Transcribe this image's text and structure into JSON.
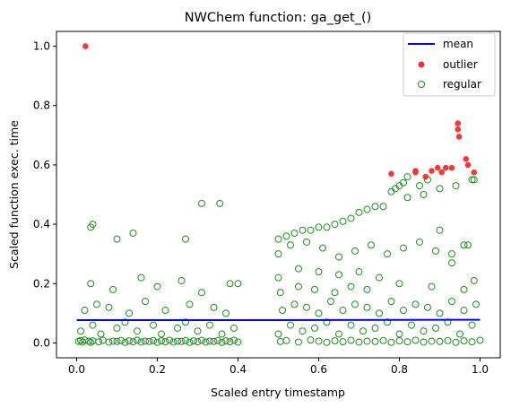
{
  "chart_data": {
    "type": "scatter",
    "title": "NWChem function: ga_get_()",
    "xlabel": "Scaled entry timestamp",
    "ylabel": "Scaled function exec. time",
    "xlim": [
      -0.05,
      1.05
    ],
    "ylim": [
      -0.05,
      1.05
    ],
    "xticks": [
      0.0,
      0.2,
      0.4,
      0.6,
      0.8,
      1.0
    ],
    "yticks": [
      0.0,
      0.2,
      0.4,
      0.6,
      0.8,
      1.0
    ],
    "xtick_labels": [
      "0.0",
      "0.2",
      "0.4",
      "0.6",
      "0.8",
      "1.0"
    ],
    "ytick_labels": [
      "0.0",
      "0.2",
      "0.4",
      "0.6",
      "0.8",
      "1.0"
    ],
    "grid": false,
    "legend_position": "top-right",
    "colors": {
      "mean": "#0000ff",
      "outlier": "#f03030",
      "regular": "#228b22"
    },
    "series": [
      {
        "name": "mean",
        "kind": "line",
        "x": [
          0.0,
          0.4,
          0.49,
          1.0
        ],
        "y": [
          0.077,
          0.077,
          0.077,
          0.078
        ]
      },
      {
        "name": "outlier",
        "kind": "points",
        "x": [
          0.022,
          0.78,
          0.84,
          0.84,
          0.865,
          0.88,
          0.895,
          0.905,
          0.915,
          0.93,
          0.945,
          0.945,
          0.948,
          0.965,
          0.97,
          0.985
        ],
        "y": [
          1.0,
          0.57,
          0.575,
          0.58,
          0.56,
          0.58,
          0.59,
          0.575,
          0.59,
          0.59,
          0.74,
          0.72,
          0.695,
          0.62,
          0.6,
          0.575
        ]
      },
      {
        "name": "regular",
        "kind": "points-hollow",
        "x": [
          0.005,
          0.01,
          0.015,
          0.02,
          0.03,
          0.035,
          0.04,
          0.055,
          0.065,
          0.08,
          0.09,
          0.1,
          0.11,
          0.12,
          0.13,
          0.14,
          0.15,
          0.16,
          0.17,
          0.18,
          0.19,
          0.2,
          0.21,
          0.22,
          0.23,
          0.24,
          0.25,
          0.26,
          0.27,
          0.28,
          0.29,
          0.3,
          0.31,
          0.32,
          0.33,
          0.34,
          0.35,
          0.36,
          0.37,
          0.38,
          0.39,
          0.4,
          0.01,
          0.04,
          0.06,
          0.1,
          0.12,
          0.15,
          0.19,
          0.21,
          0.25,
          0.27,
          0.3,
          0.33,
          0.36,
          0.39,
          0.02,
          0.05,
          0.08,
          0.13,
          0.17,
          0.22,
          0.28,
          0.34,
          0.37,
          0.035,
          0.09,
          0.16,
          0.2,
          0.26,
          0.31,
          0.38,
          0.4,
          0.035,
          0.04,
          0.1,
          0.14,
          0.27,
          0.31,
          0.355,
          0.505,
          0.52,
          0.55,
          0.58,
          0.6,
          0.62,
          0.64,
          0.66,
          0.68,
          0.7,
          0.72,
          0.74,
          0.76,
          0.78,
          0.8,
          0.82,
          0.84,
          0.86,
          0.88,
          0.9,
          0.92,
          0.94,
          0.96,
          0.98,
          1.0,
          0.5,
          0.53,
          0.56,
          0.59,
          0.62,
          0.65,
          0.68,
          0.71,
          0.74,
          0.77,
          0.8,
          0.83,
          0.86,
          0.89,
          0.92,
          0.95,
          0.98,
          0.51,
          0.54,
          0.57,
          0.6,
          0.63,
          0.66,
          0.69,
          0.72,
          0.75,
          0.78,
          0.81,
          0.84,
          0.87,
          0.9,
          0.93,
          0.96,
          0.99,
          0.5,
          0.52,
          0.54,
          0.56,
          0.58,
          0.6,
          0.62,
          0.64,
          0.66,
          0.68,
          0.7,
          0.72,
          0.74,
          0.76,
          0.82,
          0.86,
          0.9,
          0.94,
          0.98,
          0.5,
          0.53,
          0.57,
          0.61,
          0.65,
          0.69,
          0.73,
          0.77,
          0.81,
          0.85,
          0.89,
          0.93,
          0.97,
          0.505,
          0.55,
          0.59,
          0.64,
          0.68,
          0.72,
          0.8,
          0.88,
          0.96,
          0.5,
          0.55,
          0.6,
          0.65,
          0.7,
          0.75,
          0.78,
          0.79,
          0.8,
          0.81,
          0.82,
          0.85,
          0.87,
          0.9,
          0.93,
          0.96,
          0.985,
          0.985
        ],
        "y": [
          0.005,
          0.008,
          0.003,
          0.01,
          0.006,
          0.002,
          0.007,
          0.004,
          0.009,
          0.003,
          0.006,
          0.005,
          0.008,
          0.002,
          0.007,
          0.004,
          0.009,
          0.003,
          0.006,
          0.005,
          0.008,
          0.002,
          0.007,
          0.004,
          0.009,
          0.003,
          0.006,
          0.005,
          0.008,
          0.002,
          0.007,
          0.004,
          0.009,
          0.003,
          0.006,
          0.005,
          0.008,
          0.002,
          0.007,
          0.004,
          0.009,
          0.003,
          0.04,
          0.06,
          0.03,
          0.05,
          0.07,
          0.04,
          0.06,
          0.03,
          0.05,
          0.07,
          0.04,
          0.06,
          0.03,
          0.05,
          0.11,
          0.13,
          0.12,
          0.1,
          0.14,
          0.11,
          0.13,
          0.12,
          0.1,
          0.2,
          0.18,
          0.22,
          0.19,
          0.21,
          0.17,
          0.2,
          0.2,
          0.39,
          0.4,
          0.35,
          0.37,
          0.35,
          0.47,
          0.47,
          0.005,
          0.008,
          0.003,
          0.01,
          0.006,
          0.002,
          0.007,
          0.004,
          0.009,
          0.003,
          0.006,
          0.005,
          0.008,
          0.002,
          0.007,
          0.004,
          0.009,
          0.003,
          0.006,
          0.005,
          0.008,
          0.002,
          0.007,
          0.004,
          0.009,
          0.03,
          0.06,
          0.04,
          0.05,
          0.07,
          0.03,
          0.06,
          0.04,
          0.05,
          0.07,
          0.03,
          0.06,
          0.04,
          0.05,
          0.07,
          0.03,
          0.06,
          0.11,
          0.13,
          0.12,
          0.1,
          0.14,
          0.11,
          0.13,
          0.12,
          0.1,
          0.14,
          0.11,
          0.13,
          0.12,
          0.1,
          0.14,
          0.11,
          0.13,
          0.35,
          0.36,
          0.37,
          0.38,
          0.38,
          0.39,
          0.39,
          0.4,
          0.41,
          0.42,
          0.44,
          0.45,
          0.46,
          0.46,
          0.49,
          0.5,
          0.52,
          0.53,
          0.55,
          0.3,
          0.33,
          0.34,
          0.32,
          0.29,
          0.31,
          0.33,
          0.3,
          0.32,
          0.34,
          0.31,
          0.3,
          0.33,
          0.17,
          0.19,
          0.18,
          0.17,
          0.19,
          0.18,
          0.2,
          0.19,
          0.18,
          0.22,
          0.25,
          0.24,
          0.23,
          0.24,
          0.22,
          0.51,
          0.52,
          0.53,
          0.54,
          0.56,
          0.53,
          0.55,
          0.38,
          0.27,
          0.33,
          0.55,
          0.21
        ]
      }
    ]
  }
}
